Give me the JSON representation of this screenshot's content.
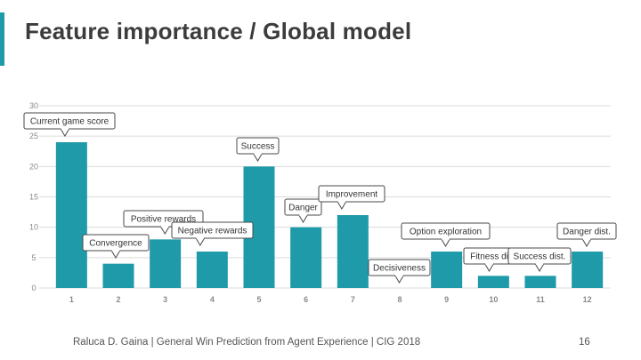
{
  "slide": {
    "title": "Feature importance / Global model",
    "footer": "Raluca D. Gaina | General Win Prediction from Agent Experience | CIG 2018",
    "page_number": "16"
  },
  "colors": {
    "accent": "#1e9aa8",
    "bar": "#1e9aa8",
    "grid": "#dcdcdc",
    "tick": "#8a8a8a",
    "title": "#3c3c3c",
    "callout_border": "#4a4a4a",
    "callout_text": "#333333"
  },
  "chart_data": {
    "type": "bar",
    "title": "",
    "xlabel": "",
    "ylabel": "",
    "categories": [
      "1",
      "2",
      "3",
      "4",
      "5",
      "6",
      "7",
      "8",
      "9",
      "10",
      "11",
      "12"
    ],
    "values": [
      24,
      4,
      8,
      6,
      20,
      10,
      12,
      0,
      6,
      2,
      2,
      6
    ],
    "ylim": [
      0,
      30
    ],
    "yticks": [
      0,
      5,
      10,
      15,
      20,
      25,
      30
    ],
    "grid": true,
    "annotations": [
      {
        "category": "1",
        "text": "Current game score"
      },
      {
        "category": "2",
        "text": "Convergence"
      },
      {
        "category": "3",
        "text": "Positive rewards"
      },
      {
        "category": "4",
        "text": "Negative rewards"
      },
      {
        "category": "5",
        "text": "Success"
      },
      {
        "category": "6",
        "text": "Danger"
      },
      {
        "category": "7",
        "text": "Improvement"
      },
      {
        "category": "8",
        "text": "Decisiveness"
      },
      {
        "category": "9",
        "text": "Option exploration"
      },
      {
        "category": "10",
        "text": "Fitness di"
      },
      {
        "category": "11",
        "text": "Success dist."
      },
      {
        "category": "12",
        "text": "Danger dist."
      }
    ]
  }
}
